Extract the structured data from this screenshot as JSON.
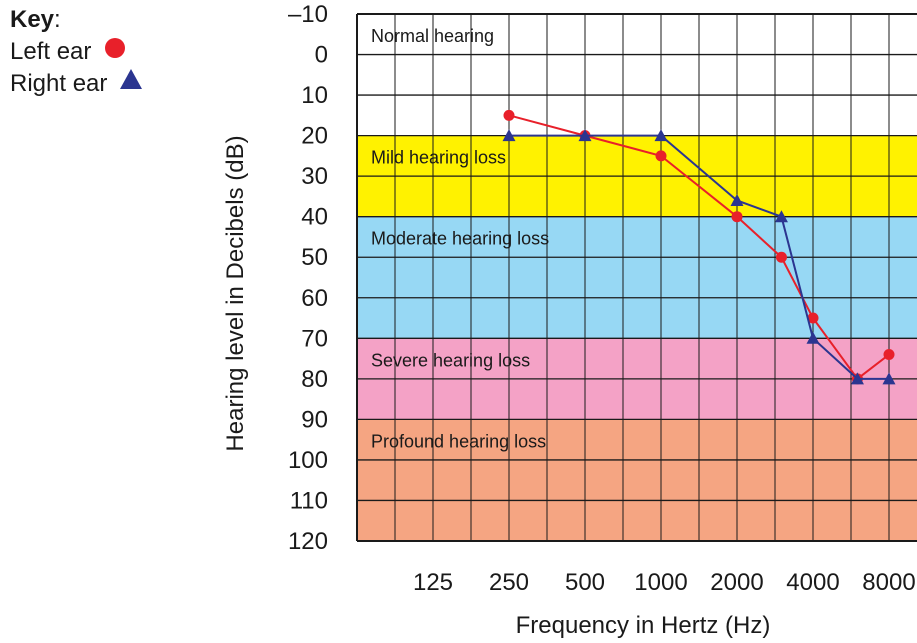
{
  "key": {
    "title": "Key",
    "colon": ":",
    "items": [
      {
        "label": "Left ear",
        "symbol": "circle",
        "color": "#e8202a"
      },
      {
        "label": "Right ear",
        "symbol": "triangle",
        "color": "#2b3590"
      }
    ]
  },
  "chart_data": {
    "type": "line",
    "xlabel": "Frequency in Hertz (Hz)",
    "ylabel": "Hearing level in Decibels (dB)",
    "x_scale": "log2",
    "x_ticks": [
      125,
      250,
      500,
      1000,
      2000,
      4000,
      8000
    ],
    "x_tick_labels": [
      "125",
      "250",
      "500",
      "1000",
      "2000",
      "4000",
      "8000"
    ],
    "y_ticks": [
      -10,
      0,
      10,
      20,
      30,
      40,
      50,
      60,
      70,
      80,
      90,
      100,
      110,
      120
    ],
    "y_tick_labels": [
      "–10",
      "0",
      "10",
      "20",
      "30",
      "40",
      "50",
      "60",
      "70",
      "80",
      "90",
      "100",
      "110",
      "120"
    ],
    "ylim": [
      -10,
      120
    ],
    "y_inverted": true,
    "grid": true,
    "bands": [
      {
        "label": "Normal hearing",
        "from": -10,
        "to": 20,
        "color": "#ffffff"
      },
      {
        "label": "Mild hearing loss",
        "from": 20,
        "to": 40,
        "color": "#fff200"
      },
      {
        "label": "Moderate hearing loss",
        "from": 40,
        "to": 70,
        "color": "#97d8f4"
      },
      {
        "label": "Severe hearing loss",
        "from": 70,
        "to": 90,
        "color": "#f4a2c6"
      },
      {
        "label": "Profound hearing loss",
        "from": 90,
        "to": 120,
        "color": "#f5a582"
      }
    ],
    "series": [
      {
        "name": "Left ear",
        "marker": "circle",
        "color": "#e8202a",
        "x": [
          250,
          500,
          1000,
          2000,
          3000,
          4000,
          6000,
          8000
        ],
        "y": [
          15,
          20,
          25,
          40,
          50,
          65,
          80,
          74
        ]
      },
      {
        "name": "Right ear",
        "marker": "triangle",
        "color": "#2b3590",
        "x": [
          250,
          500,
          1000,
          2000,
          3000,
          4000,
          6000,
          8000
        ],
        "y": [
          20,
          20,
          20,
          36,
          40,
          70,
          80,
          80
        ]
      }
    ]
  }
}
